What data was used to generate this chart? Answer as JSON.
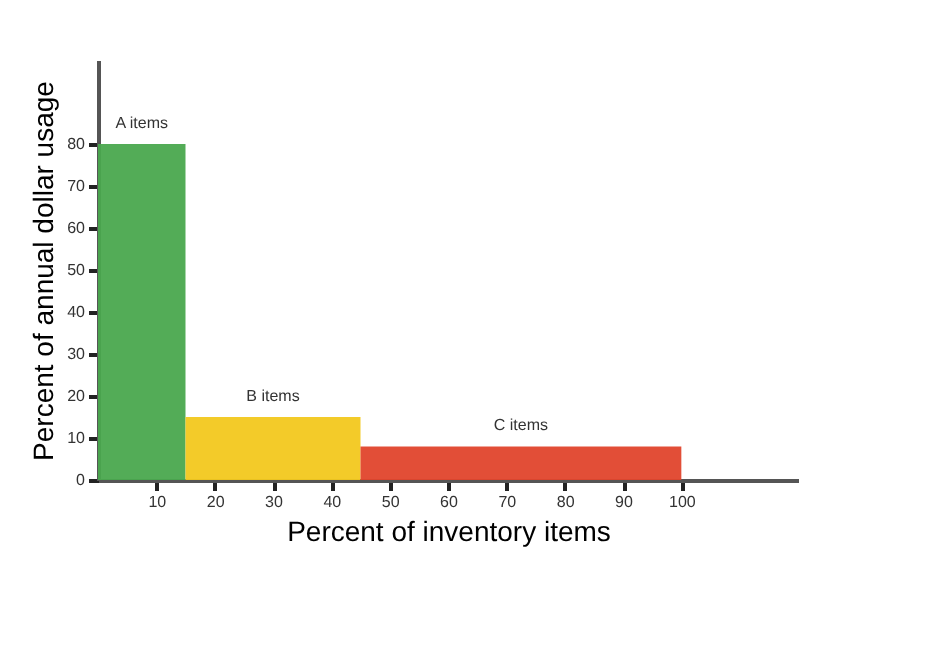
{
  "chart_data": {
    "type": "histogram",
    "xlabel": "Percent of inventory items",
    "ylabel": "Percent of annual dollar usage",
    "bins": [
      0,
      15,
      45,
      100
    ],
    "values": [
      80,
      15,
      8
    ],
    "colors": [
      "#4aa84e",
      "#f2c81e",
      "#e0452c"
    ],
    "xlim": [
      0,
      120
    ],
    "xticks": [
      10,
      20,
      30,
      40,
      50,
      60,
      70,
      80,
      90,
      100
    ],
    "ylim": [
      0,
      100
    ],
    "yticks": [
      0,
      10,
      20,
      30,
      40,
      50,
      60,
      70,
      80
    ],
    "grid": false,
    "legend": false,
    "annotations": [
      {
        "text": "A items",
        "x": 7.5,
        "y": 80
      },
      {
        "text": "B items",
        "x": 30,
        "y": 15
      },
      {
        "text": "C items",
        "x": 72.5,
        "y": 8
      }
    ]
  }
}
